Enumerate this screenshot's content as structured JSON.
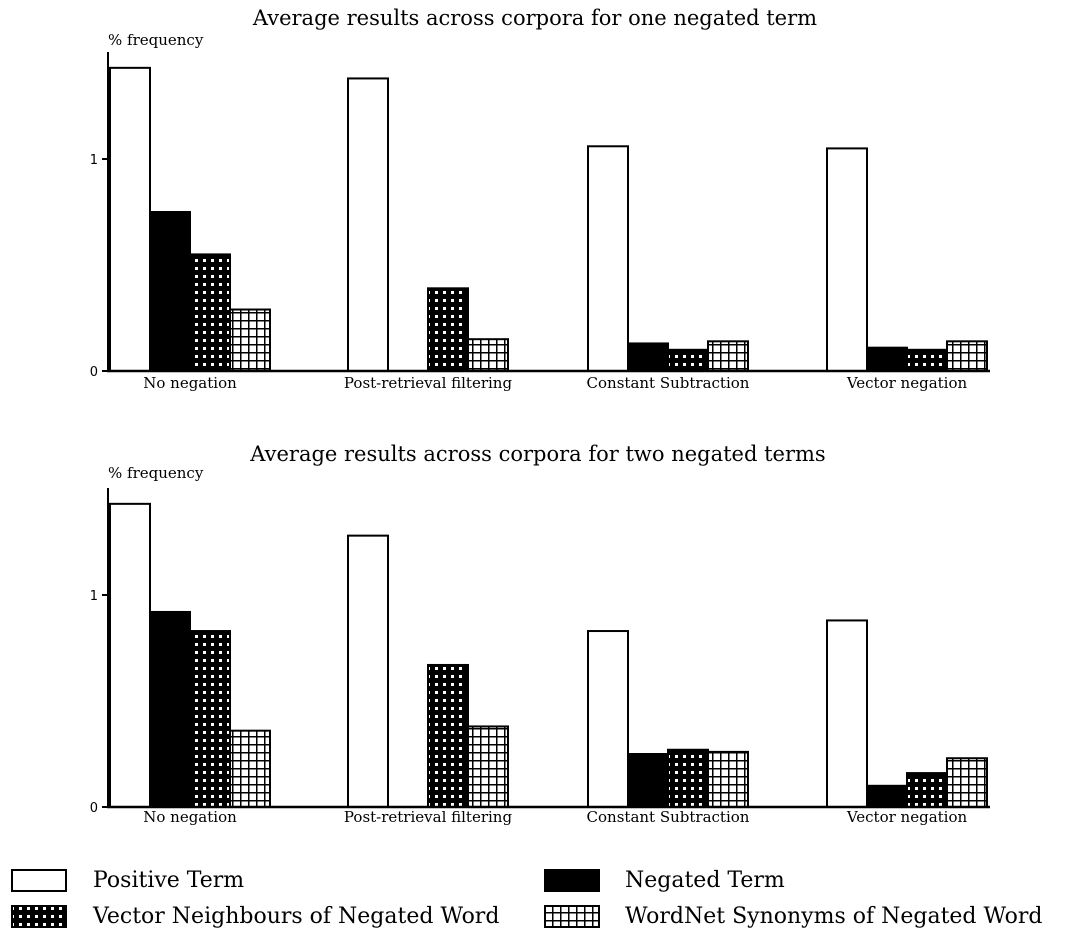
{
  "chart_data": [
    {
      "type": "bar",
      "title": "Average results across corpora for one negated term",
      "ylabel": "% frequency",
      "ylim": [
        0,
        1.5
      ],
      "yticks": [
        0,
        1
      ],
      "categories": [
        "No negation",
        "Post-retrieval filtering",
        "Constant Subtraction",
        "Vector negation"
      ],
      "series": [
        {
          "name": "Positive Term",
          "values": [
            1.43,
            1.38,
            1.06,
            1.05
          ]
        },
        {
          "name": "Negated Term",
          "values": [
            0.75,
            0,
            0.13,
            0.11
          ]
        },
        {
          "name": "Vector Neighbours of Negated Word",
          "values": [
            0.55,
            0.39,
            0.1,
            0.1
          ]
        },
        {
          "name": "WordNet Synonyms of Negated Word",
          "values": [
            0.29,
            0.15,
            0.14,
            0.14
          ]
        }
      ]
    },
    {
      "type": "bar",
      "title": "Average results across corpora for two negated terms",
      "ylabel": "% frequency",
      "ylim": [
        0,
        1.5
      ],
      "yticks": [
        0,
        1
      ],
      "categories": [
        "No negation",
        "Post-retrieval filtering",
        "Constant Subtraction",
        "Vector negation"
      ],
      "series": [
        {
          "name": "Positive Term",
          "values": [
            1.43,
            1.28,
            0.83,
            0.88
          ]
        },
        {
          "name": "Negated Term",
          "values": [
            0.92,
            0,
            0.25,
            0.1
          ]
        },
        {
          "name": "Vector Neighbours of Negated Word",
          "values": [
            0.83,
            0.67,
            0.27,
            0.16
          ]
        },
        {
          "name": "WordNet Synonyms of Negated Word",
          "values": [
            0.36,
            0.38,
            0.26,
            0.23
          ]
        }
      ]
    }
  ],
  "legend": [
    {
      "label": "Positive Term",
      "pattern": "white"
    },
    {
      "label": "Negated Term",
      "pattern": "black"
    },
    {
      "label": "Vector Neighbours of Negated Word",
      "pattern": "dense-grid"
    },
    {
      "label": "WordNet Synonyms of Negated Word",
      "pattern": "light-grid"
    }
  ],
  "legend_placement": "bottom"
}
